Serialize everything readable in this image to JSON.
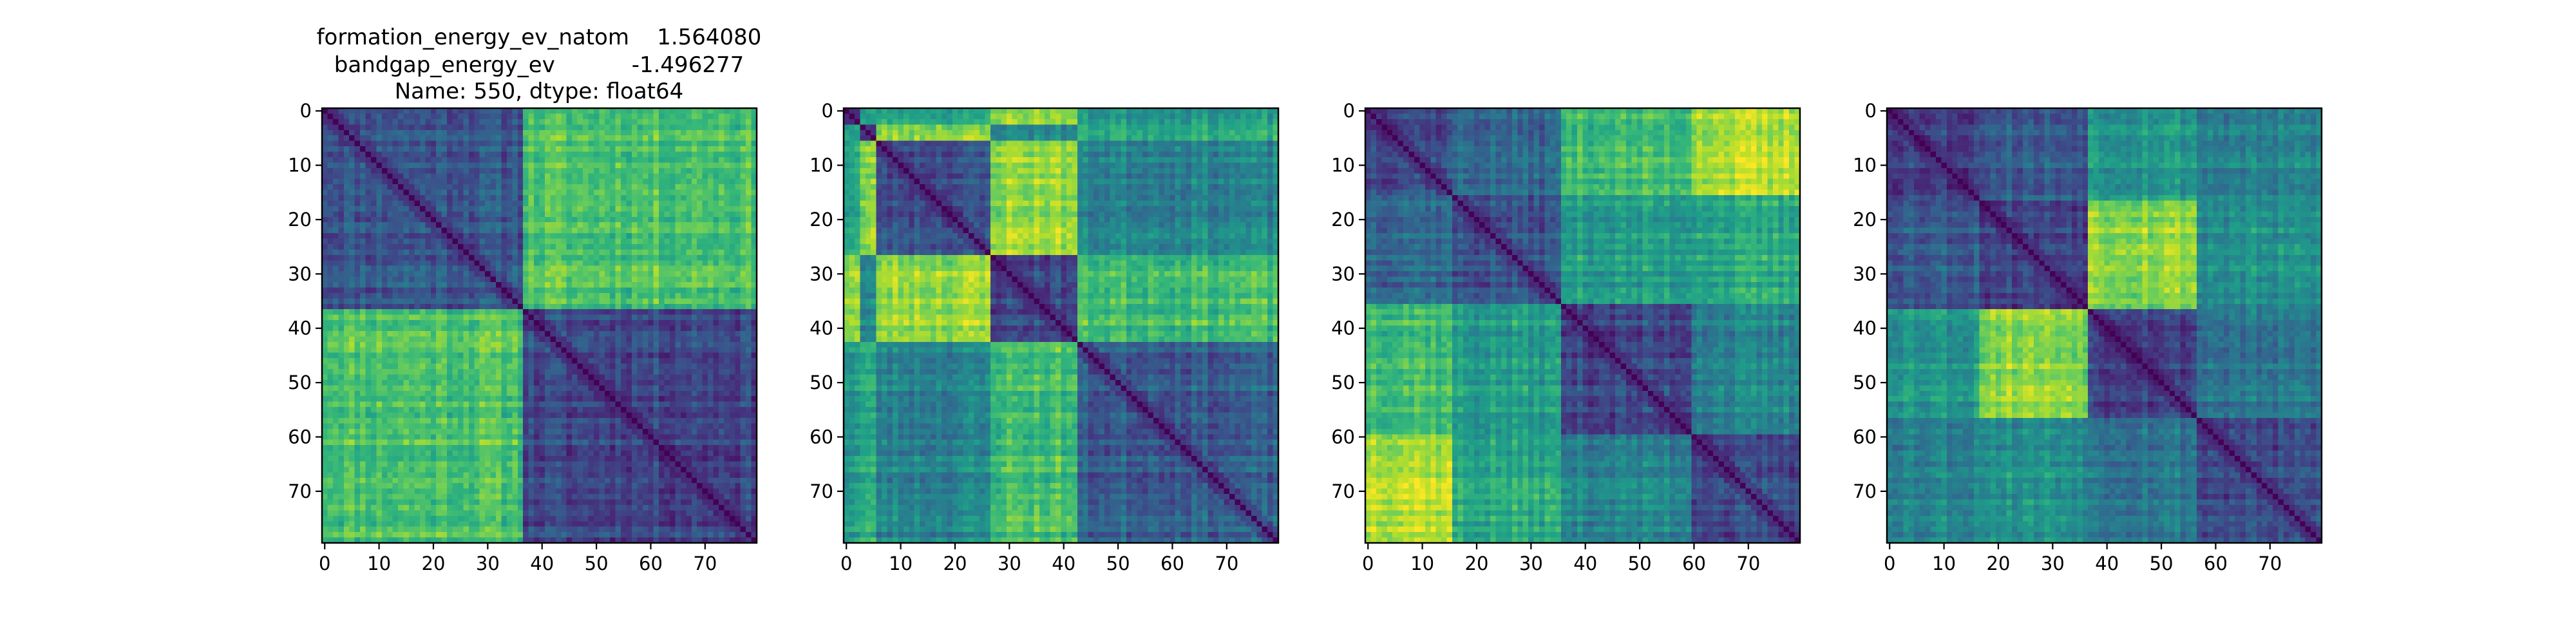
{
  "figure_title": {
    "lines": [
      "formation_energy_ev_natom    1.564080",
      "bandgap_energy_ev           -1.496277",
      "Name: 550, dtype: float64"
    ]
  },
  "colormap": "viridis",
  "colormap_stops": [
    "#440154",
    "#482878",
    "#3e4989",
    "#31688e",
    "#26828e",
    "#1f9e89",
    "#35b779",
    "#6ece58",
    "#b5de2b",
    "#fde725"
  ],
  "chart_data": [
    {
      "type": "heatmap",
      "panel": 1,
      "title": "formation_energy_ev_natom    1.564080\nbandgap_energy_ev           -1.496277\nName: 550, dtype: float64",
      "size": 80,
      "xticks": [
        0,
        10,
        20,
        30,
        40,
        50,
        60,
        70
      ],
      "yticks": [
        0,
        10,
        20,
        30,
        40,
        50,
        60,
        70
      ],
      "xlim": [
        -0.5,
        79.5
      ],
      "ylim": [
        79.5,
        -0.5
      ],
      "grid": false,
      "blocks": [
        [
          0,
          37
        ],
        [
          37,
          80
        ]
      ],
      "block_levels": [
        [
          0.28,
          0.72
        ],
        [
          0.72,
          0.22
        ]
      ],
      "seed": 11
    },
    {
      "type": "heatmap",
      "panel": 2,
      "size": 80,
      "xticks": [
        0,
        10,
        20,
        30,
        40,
        50,
        60,
        70
      ],
      "yticks": [
        0,
        10,
        20,
        30,
        40,
        50,
        60,
        70
      ],
      "xlim": [
        -0.5,
        79.5
      ],
      "ylim": [
        79.5,
        -0.5
      ],
      "grid": false,
      "blocks": [
        [
          0,
          3
        ],
        [
          3,
          6
        ],
        [
          6,
          27
        ],
        [
          27,
          43
        ],
        [
          43,
          80
        ]
      ],
      "block_levels": [
        [
          0.25,
          0.55,
          0.6,
          0.85,
          0.55
        ],
        [
          0.55,
          0.2,
          0.8,
          0.45,
          0.6
        ],
        [
          0.6,
          0.8,
          0.25,
          0.85,
          0.45
        ],
        [
          0.85,
          0.45,
          0.85,
          0.22,
          0.7
        ],
        [
          0.55,
          0.6,
          0.45,
          0.7,
          0.3
        ]
      ],
      "seed": 23
    },
    {
      "type": "heatmap",
      "panel": 3,
      "size": 80,
      "xticks": [
        0,
        10,
        20,
        30,
        40,
        50,
        60,
        70
      ],
      "yticks": [
        0,
        10,
        20,
        30,
        40,
        50,
        60,
        70
      ],
      "xlim": [
        -0.5,
        79.5
      ],
      "ylim": [
        79.5,
        -0.5
      ],
      "grid": false,
      "blocks": [
        [
          0,
          16
        ],
        [
          16,
          36
        ],
        [
          36,
          60
        ],
        [
          60,
          80
        ]
      ],
      "block_levels": [
        [
          0.25,
          0.35,
          0.7,
          0.9
        ],
        [
          0.35,
          0.25,
          0.55,
          0.6
        ],
        [
          0.7,
          0.55,
          0.22,
          0.45
        ],
        [
          0.9,
          0.6,
          0.45,
          0.22
        ]
      ],
      "seed": 37
    },
    {
      "type": "heatmap",
      "panel": 4,
      "size": 80,
      "xticks": [
        0,
        10,
        20,
        30,
        40,
        50,
        60,
        70
      ],
      "yticks": [
        0,
        10,
        20,
        30,
        40,
        50,
        60,
        70
      ],
      "xlim": [
        -0.5,
        79.5
      ],
      "ylim": [
        79.5,
        -0.5
      ],
      "grid": false,
      "blocks": [
        [
          0,
          17
        ],
        [
          17,
          37
        ],
        [
          37,
          57
        ],
        [
          57,
          80
        ]
      ],
      "block_levels": [
        [
          0.22,
          0.3,
          0.55,
          0.45
        ],
        [
          0.3,
          0.22,
          0.85,
          0.5
        ],
        [
          0.55,
          0.85,
          0.22,
          0.4
        ],
        [
          0.45,
          0.5,
          0.4,
          0.22
        ]
      ],
      "seed": 53
    }
  ]
}
